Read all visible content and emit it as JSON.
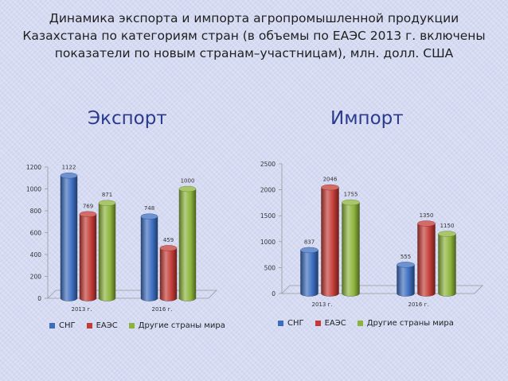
{
  "slide": {
    "title": "Динамика экспорта и импорта агропромышленной продукции Казахстана по категориям стран (в объемы  по ЕАЭС 2013 г. включены показатели по новым странам–участницам), млн. долл. США"
  },
  "colors": {
    "series_colors": [
      "#3c6dbf",
      "#c33b36",
      "#8cb33b"
    ],
    "title_accent": "#2b3a8c",
    "background": "#d6dbf2"
  },
  "chart_data": [
    {
      "type": "bar",
      "title": "Экспорт",
      "categories": [
        "2013 г.",
        "2016 г."
      ],
      "series": [
        {
          "name": "СНГ",
          "values": [
            1122,
            748
          ]
        },
        {
          "name": "ЕАЭС",
          "values": [
            769,
            459
          ]
        },
        {
          "name": "Другие страны мира",
          "values": [
            871,
            1000
          ]
        }
      ],
      "ylim": [
        0,
        1200
      ],
      "yticks": [
        0,
        200,
        400,
        600,
        800,
        1000,
        1200
      ],
      "grid": false,
      "legend_position": "bottom",
      "style": "3d-cylinder"
    },
    {
      "type": "bar",
      "title": "Импорт",
      "categories": [
        "2013 г.",
        "2016 г."
      ],
      "series": [
        {
          "name": "СНГ",
          "values": [
            837,
            555
          ]
        },
        {
          "name": "ЕАЭС",
          "values": [
            2046,
            1350
          ]
        },
        {
          "name": "Другие страны мира",
          "values": [
            1755,
            1150
          ]
        }
      ],
      "ylim": [
        0,
        2500
      ],
      "yticks": [
        0,
        500,
        1000,
        1500,
        2000,
        2500
      ],
      "grid": false,
      "legend_position": "bottom",
      "style": "3d-cylinder"
    }
  ]
}
